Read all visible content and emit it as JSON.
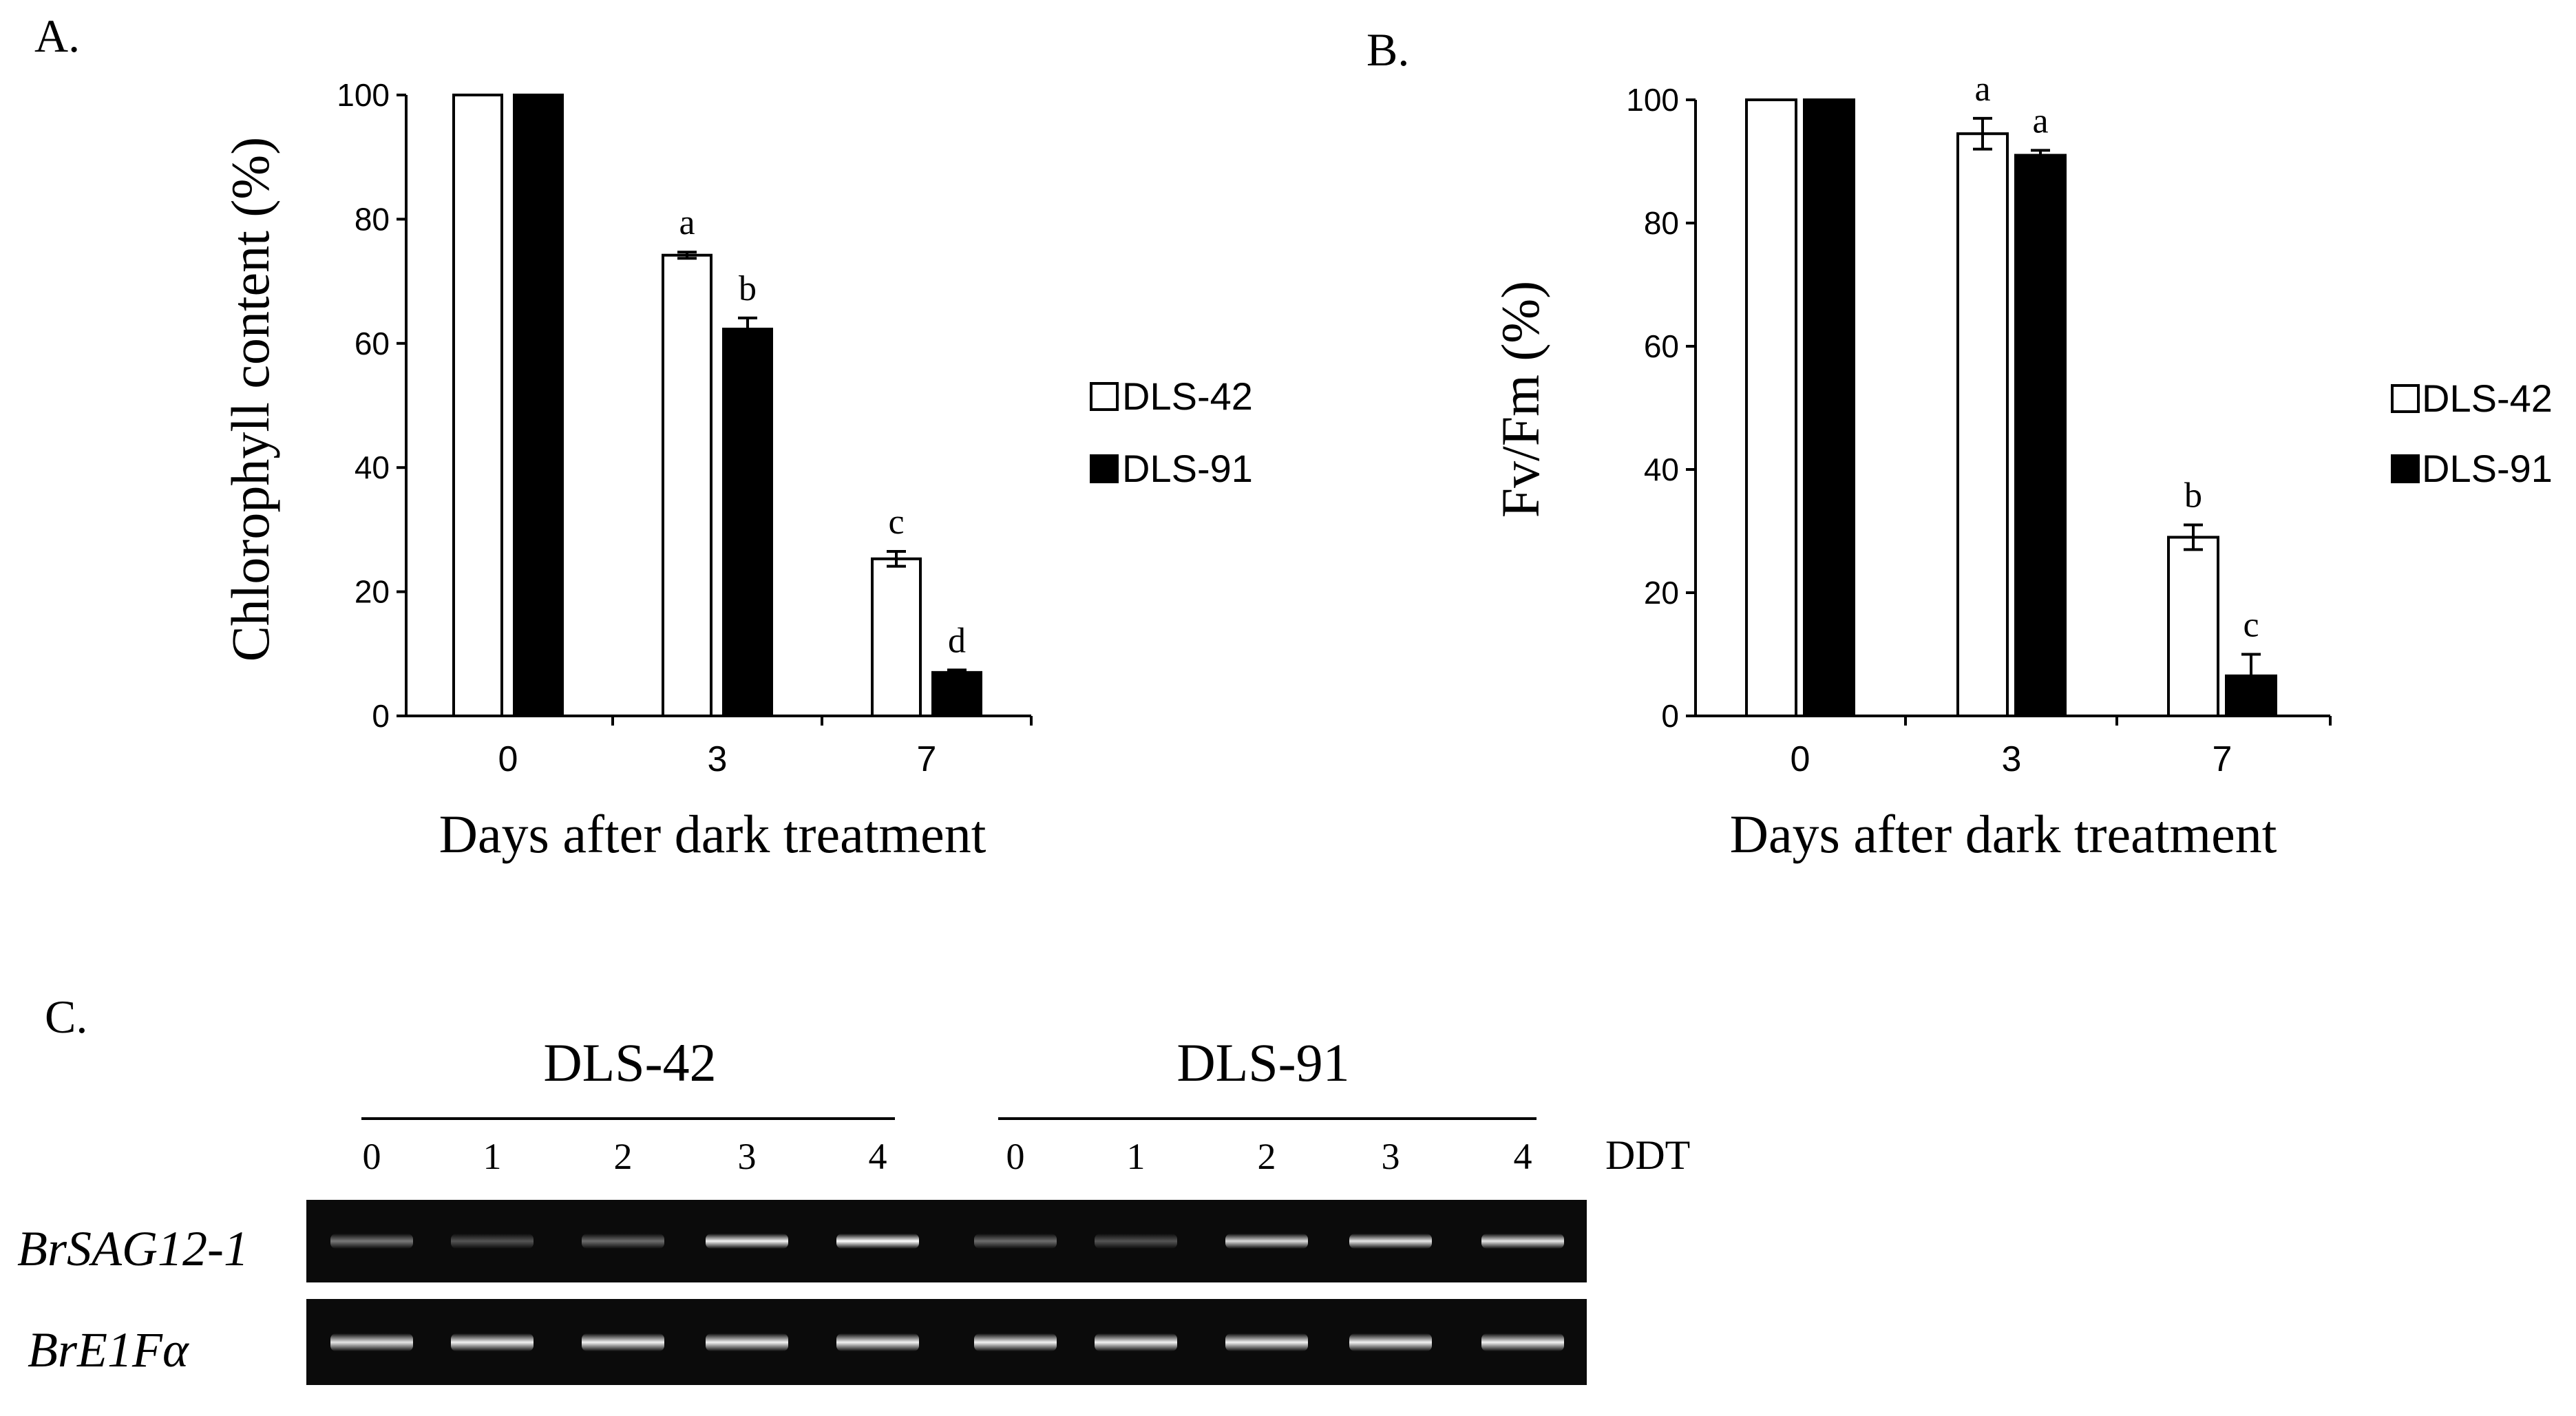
{
  "colors": {
    "dls42": "#ffffff",
    "dls91": "#000000",
    "gel_bg": "#0b0b0b",
    "band": "#e6e6e6"
  },
  "chart_data": [
    {
      "panel": "A.",
      "type": "bar",
      "ylabel": "Chlorophyll content (%)",
      "xlabel": "Days after dark treatment",
      "categories": [
        "0",
        "3",
        "7"
      ],
      "ylim": [
        0,
        100
      ],
      "yticks": [
        "0",
        "20",
        "40",
        "60",
        "80",
        "100"
      ],
      "series": [
        {
          "name": "DLS-42",
          "color": "#ffffff",
          "values": [
            100,
            74.2,
            25.3
          ],
          "errors": [
            0,
            0.5,
            1.2
          ],
          "letters": [
            "",
            "a",
            "c"
          ]
        },
        {
          "name": "DLS-91",
          "color": "#000000",
          "values": [
            100,
            62.3,
            7.0
          ],
          "errors": [
            0,
            1.8,
            0.4
          ],
          "letters": [
            "",
            "b",
            "d"
          ]
        }
      ],
      "legend": [
        "DLS-42",
        "DLS-91"
      ]
    },
    {
      "panel": "B.",
      "type": "bar",
      "ylabel": "Fv/Fm (%)",
      "xlabel": "Days after dark treatment",
      "categories": [
        "0",
        "3",
        "7"
      ],
      "ylim": [
        0,
        100
      ],
      "yticks": [
        "0",
        "20",
        "40",
        "60",
        "80",
        "100"
      ],
      "series": [
        {
          "name": "DLS-42",
          "color": "#ffffff",
          "values": [
            100,
            94.5,
            29.0
          ],
          "errors": [
            0,
            2.5,
            2.0
          ],
          "letters": [
            "",
            "a",
            "b"
          ]
        },
        {
          "name": "DLS-91",
          "color": "#000000",
          "values": [
            100,
            91.0,
            6.5
          ],
          "errors": [
            0,
            0.8,
            3.5
          ],
          "letters": [
            "",
            "a",
            "c"
          ]
        }
      ],
      "legend": [
        "DLS-42",
        "DLS-91"
      ]
    }
  ],
  "gel": {
    "panel": "C.",
    "groups": [
      {
        "name": "DLS-42",
        "lanes": [
          "0",
          "1",
          "2",
          "3",
          "4"
        ]
      },
      {
        "name": "DLS-91",
        "lanes": [
          "0",
          "1",
          "2",
          "3",
          "4"
        ]
      }
    ],
    "lane_unit": "DDT",
    "rows": [
      {
        "label": "BrSAG12-1",
        "intensities": [
          0.45,
          0.3,
          0.4,
          0.95,
          1.0,
          0.4,
          0.3,
          0.85,
          0.9,
          0.9
        ]
      },
      {
        "label": "BrE1Fα",
        "intensities": [
          0.9,
          0.95,
          0.95,
          0.95,
          0.95,
          0.95,
          0.95,
          0.95,
          0.95,
          0.95
        ]
      }
    ]
  }
}
